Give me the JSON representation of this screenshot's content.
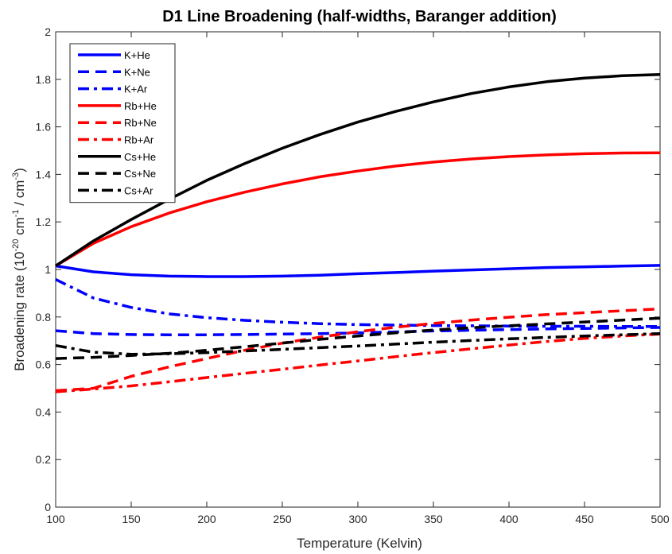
{
  "chart_data": {
    "type": "line",
    "title": "D1 Line Broadening (half-widths, Baranger addition)",
    "xlabel": "Temperature (Kelvin)",
    "ylabel": {
      "base": "Broadening rate (10",
      "exp1": "-20",
      "mid": " cm",
      "exp2": "-1",
      "mid2": " / cm",
      "exp3": "-3",
      "end": ")"
    },
    "xlim": [
      100,
      500
    ],
    "ylim": [
      0,
      2
    ],
    "xticks": [
      100,
      150,
      200,
      250,
      300,
      350,
      400,
      450,
      500
    ],
    "yticks": [
      0,
      0.2,
      0.4,
      0.6,
      0.8,
      1,
      1.2,
      1.4,
      1.6,
      1.8,
      2
    ],
    "xtick_labels": [
      "100",
      "150",
      "200",
      "250",
      "300",
      "350",
      "400",
      "450",
      "500"
    ],
    "ytick_labels": [
      "0",
      "0.2",
      "0.4",
      "0.6",
      "0.8",
      "1",
      "1.2",
      "1.4",
      "1.6",
      "1.8",
      "2"
    ],
    "grid": false,
    "legend_position": "top-left",
    "x": [
      100,
      125,
      150,
      175,
      200,
      225,
      250,
      275,
      300,
      325,
      350,
      375,
      400,
      425,
      450,
      475,
      500
    ],
    "series": [
      {
        "name": "K+He",
        "color": "#0000ff",
        "dash": "solid",
        "values": [
          1.015,
          0.99,
          0.978,
          0.972,
          0.97,
          0.97,
          0.972,
          0.976,
          0.982,
          0.987,
          0.993,
          0.998,
          1.003,
          1.008,
          1.011,
          1.014,
          1.017
        ]
      },
      {
        "name": "K+Ne",
        "color": "#0000ff",
        "dash": "dash",
        "values": [
          0.742,
          0.73,
          0.726,
          0.725,
          0.725,
          0.726,
          0.728,
          0.73,
          0.733,
          0.737,
          0.741,
          0.744,
          0.747,
          0.75,
          0.752,
          0.754,
          0.756
        ]
      },
      {
        "name": "K+Ar",
        "color": "#0000ff",
        "dash": "dashdot",
        "values": [
          0.958,
          0.88,
          0.84,
          0.813,
          0.797,
          0.786,
          0.778,
          0.772,
          0.768,
          0.766,
          0.764,
          0.763,
          0.762,
          0.761,
          0.761,
          0.76,
          0.76
        ]
      },
      {
        "name": "Rb+He",
        "color": "#ff0000",
        "dash": "solid",
        "values": [
          1.015,
          1.11,
          1.18,
          1.237,
          1.285,
          1.325,
          1.36,
          1.39,
          1.414,
          1.435,
          1.452,
          1.465,
          1.475,
          1.482,
          1.487,
          1.49,
          1.491
        ]
      },
      {
        "name": "Rb+Ne",
        "color": "#ff0000",
        "dash": "dash",
        "values": [
          0.49,
          0.5,
          0.55,
          0.59,
          0.625,
          0.66,
          0.69,
          0.715,
          0.738,
          0.757,
          0.773,
          0.787,
          0.799,
          0.81,
          0.818,
          0.826,
          0.834
        ]
      },
      {
        "name": "Rb+Ar",
        "color": "#ff0000",
        "dash": "dashdot",
        "values": [
          0.485,
          0.497,
          0.51,
          0.527,
          0.545,
          0.563,
          0.58,
          0.598,
          0.615,
          0.633,
          0.65,
          0.666,
          0.682,
          0.697,
          0.71,
          0.72,
          0.728
        ]
      },
      {
        "name": "Cs+He",
        "color": "#000000",
        "dash": "solid",
        "values": [
          1.015,
          1.12,
          1.21,
          1.295,
          1.375,
          1.445,
          1.51,
          1.568,
          1.62,
          1.665,
          1.705,
          1.74,
          1.768,
          1.79,
          1.805,
          1.815,
          1.82
        ]
      },
      {
        "name": "Cs+Ne",
        "color": "#000000",
        "dash": "dash",
        "values": [
          0.625,
          0.63,
          0.638,
          0.647,
          0.66,
          0.675,
          0.69,
          0.706,
          0.72,
          0.733,
          0.745,
          0.755,
          0.763,
          0.771,
          0.779,
          0.787,
          0.795
        ]
      },
      {
        "name": "Cs+Ar",
        "color": "#000000",
        "dash": "dashdot",
        "values": [
          0.68,
          0.652,
          0.643,
          0.645,
          0.65,
          0.657,
          0.664,
          0.671,
          0.678,
          0.686,
          0.694,
          0.701,
          0.708,
          0.714,
          0.72,
          0.725,
          0.73
        ]
      }
    ]
  }
}
